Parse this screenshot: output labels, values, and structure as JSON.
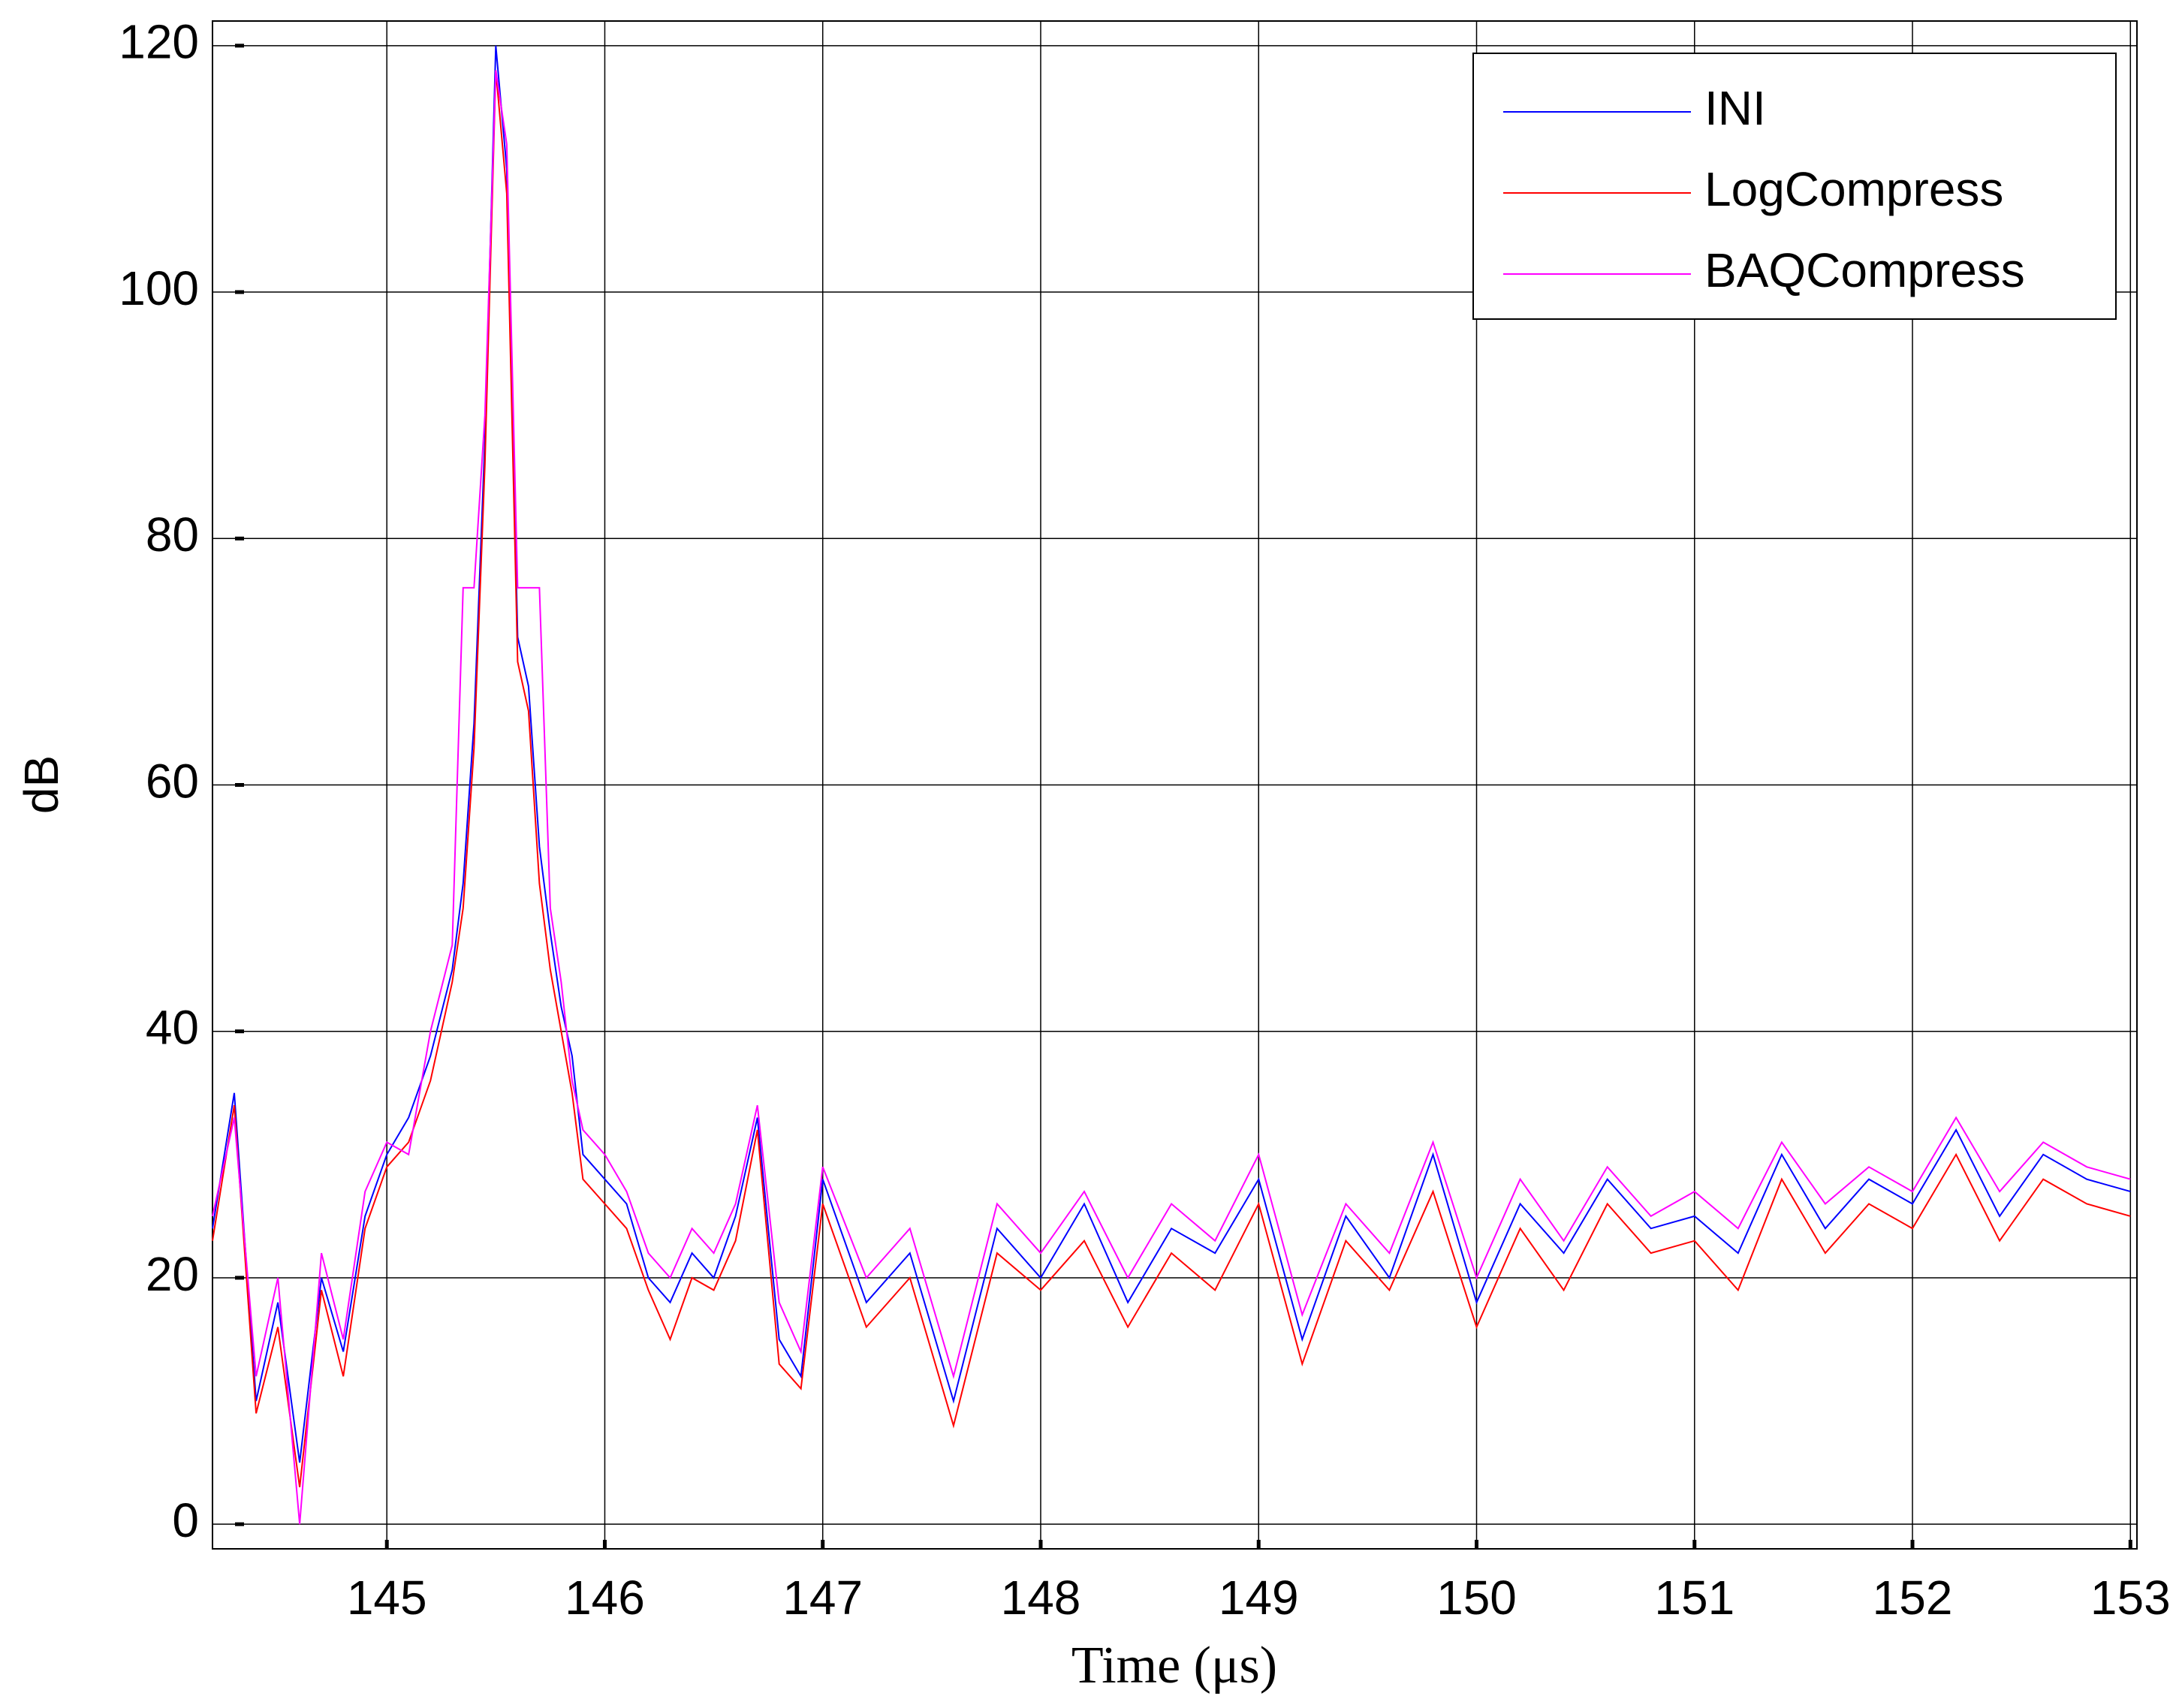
{
  "chart_data": {
    "type": "line",
    "xlabel": "Time (μs)",
    "ylabel": "dB",
    "x": [
      144.2,
      144.3,
      144.4,
      144.5,
      144.6,
      144.7,
      144.8,
      144.9,
      145.0,
      145.1,
      145.2,
      145.3,
      145.35,
      145.4,
      145.45,
      145.5,
      145.55,
      145.6,
      145.65,
      145.7,
      145.75,
      145.8,
      145.85,
      145.9,
      146.0,
      146.1,
      146.2,
      146.3,
      146.4,
      146.5,
      146.6,
      146.7,
      146.8,
      146.9,
      147.0,
      147.2,
      147.4,
      147.6,
      147.8,
      148.0,
      148.2,
      148.4,
      148.6,
      148.8,
      149.0,
      149.2,
      149.4,
      149.6,
      149.8,
      150.0,
      150.2,
      150.4,
      150.6,
      150.8,
      151.0,
      151.2,
      151.4,
      151.6,
      151.8,
      152.0,
      152.2,
      152.4,
      152.6,
      152.8,
      153.0
    ],
    "series": [
      {
        "name": "INI",
        "color": "#0000ff",
        "values": [
          24,
          35,
          10,
          18,
          5,
          20,
          14,
          25,
          30,
          33,
          38,
          45,
          52,
          65,
          88,
          120,
          110,
          72,
          68,
          55,
          48,
          42,
          38,
          30,
          28,
          26,
          20,
          18,
          22,
          20,
          25,
          33,
          15,
          12,
          28,
          18,
          22,
          10,
          24,
          20,
          26,
          18,
          24,
          22,
          28,
          15,
          25,
          20,
          30,
          18,
          26,
          22,
          28,
          24,
          25,
          22,
          30,
          24,
          28,
          26,
          32,
          25,
          30,
          28,
          27
        ]
      },
      {
        "name": "LogCompress",
        "color": "#ff0000",
        "values": [
          23,
          34,
          9,
          16,
          3,
          19,
          12,
          24,
          29,
          31,
          36,
          44,
          50,
          63,
          86,
          118,
          108,
          70,
          66,
          52,
          45,
          40,
          35,
          28,
          26,
          24,
          19,
          15,
          20,
          19,
          23,
          32,
          13,
          11,
          26,
          16,
          20,
          8,
          22,
          19,
          23,
          16,
          22,
          19,
          26,
          13,
          23,
          19,
          27,
          16,
          24,
          19,
          26,
          22,
          23,
          19,
          28,
          22,
          26,
          24,
          30,
          23,
          28,
          26,
          25
        ]
      },
      {
        "name": "BAQCompress",
        "color": "#ff00ff",
        "values": [
          25,
          33,
          12,
          20,
          0,
          22,
          15,
          27,
          31,
          30,
          40,
          47,
          76,
          76,
          90,
          118,
          112,
          76,
          76,
          76,
          50,
          44,
          36,
          32,
          30,
          27,
          22,
          20,
          24,
          22,
          26,
          34,
          18,
          14,
          29,
          20,
          24,
          12,
          26,
          22,
          27,
          20,
          26,
          23,
          30,
          17,
          26,
          22,
          31,
          20,
          28,
          23,
          29,
          25,
          27,
          24,
          31,
          26,
          29,
          27,
          33,
          27,
          31,
          29,
          28
        ]
      }
    ],
    "xlim": [
      144.2,
      153.03
    ],
    "xticks": [
      145,
      146,
      147,
      148,
      149,
      150,
      151,
      152,
      153
    ],
    "ylim": [
      -2,
      122
    ],
    "yticks": [
      0,
      20,
      40,
      60,
      80,
      100,
      120
    ],
    "grid": true,
    "legend": "upper-right"
  }
}
